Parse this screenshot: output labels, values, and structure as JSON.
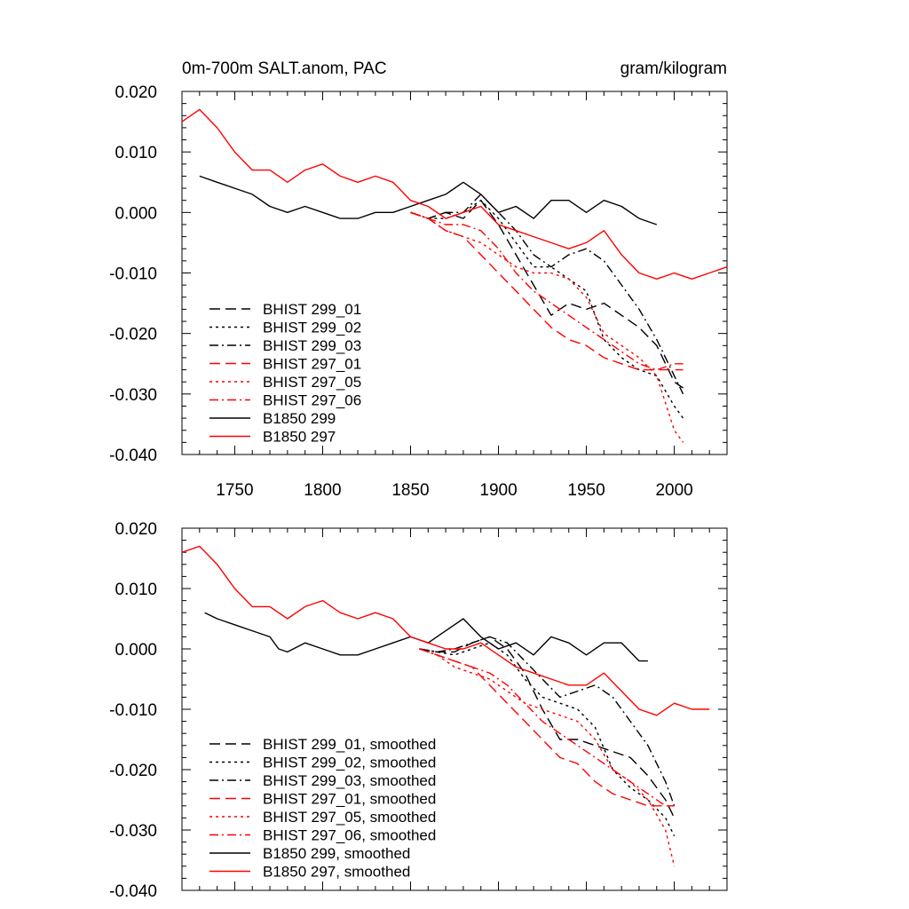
{
  "chart_data": [
    {
      "type": "line",
      "title": "0m-700m SALT.anom, PAC",
      "units": "gram/kilogram",
      "xlim": [
        1720,
        2030
      ],
      "ylim": [
        -0.04,
        0.02
      ],
      "xticks": [
        1750,
        1800,
        1850,
        1900,
        1950,
        2000
      ],
      "xtick_labels": [
        "1750",
        "1800",
        "1850",
        "1900",
        "1950",
        "2000"
      ],
      "yticks": [
        0.02,
        0.01,
        0.0,
        -0.01,
        -0.02,
        -0.03,
        -0.04
      ],
      "ytick_labels": [
        "0.020",
        "0.010",
        "0.000",
        "-0.010",
        "-0.020",
        "-0.030",
        "-0.040"
      ],
      "grid": false,
      "legend_position": "lower-left",
      "series": [
        {
          "name": "BHIST 299_01",
          "color": "#000000",
          "dash": "long-dash",
          "x": [
            1850,
            1860,
            1870,
            1880,
            1890,
            1900,
            1910,
            1920,
            1930,
            1940,
            1950,
            1960,
            1970,
            1980,
            1990,
            2000,
            2005
          ],
          "y": [
            0.0,
            -0.001,
            0.0,
            -0.001,
            0.002,
            -0.002,
            -0.007,
            -0.012,
            -0.017,
            -0.015,
            -0.016,
            -0.015,
            -0.017,
            -0.019,
            -0.022,
            -0.028,
            -0.029
          ]
        },
        {
          "name": "BHIST 299_02",
          "color": "#000000",
          "dash": "dot",
          "x": [
            1850,
            1860,
            1870,
            1880,
            1890,
            1900,
            1910,
            1920,
            1930,
            1940,
            1950,
            1960,
            1970,
            1980,
            1990,
            2000,
            2005
          ],
          "y": [
            0.0,
            -0.001,
            -0.001,
            0.0,
            0.002,
            -0.001,
            -0.005,
            -0.009,
            -0.009,
            -0.011,
            -0.013,
            -0.021,
            -0.024,
            -0.026,
            -0.027,
            -0.032,
            -0.034
          ]
        },
        {
          "name": "BHIST 299_03",
          "color": "#000000",
          "dash": "dash-dot",
          "x": [
            1850,
            1860,
            1870,
            1880,
            1890,
            1900,
            1910,
            1920,
            1930,
            1940,
            1950,
            1960,
            1970,
            1980,
            1990,
            2000,
            2005
          ],
          "y": [
            0.0,
            -0.001,
            0.0,
            0.0,
            0.003,
            0.0,
            -0.003,
            -0.007,
            -0.009,
            -0.007,
            -0.006,
            -0.008,
            -0.012,
            -0.016,
            -0.021,
            -0.027,
            -0.03
          ]
        },
        {
          "name": "BHIST 297_01",
          "color": "#ff0000",
          "dash": "long-dash",
          "x": [
            1850,
            1860,
            1870,
            1880,
            1890,
            1900,
            1910,
            1920,
            1930,
            1940,
            1950,
            1960,
            1970,
            1980,
            1990,
            2000,
            2005
          ],
          "y": [
            0.0,
            -0.001,
            -0.003,
            -0.004,
            -0.007,
            -0.01,
            -0.013,
            -0.016,
            -0.019,
            -0.021,
            -0.022,
            -0.024,
            -0.025,
            -0.026,
            -0.026,
            -0.026,
            -0.026
          ]
        },
        {
          "name": "BHIST 297_05",
          "color": "#ff0000",
          "dash": "dot",
          "x": [
            1850,
            1860,
            1870,
            1880,
            1890,
            1900,
            1910,
            1920,
            1930,
            1940,
            1950,
            1960,
            1970,
            1980,
            1990,
            2000,
            2005
          ],
          "y": [
            0.0,
            -0.001,
            -0.003,
            -0.004,
            -0.005,
            -0.007,
            -0.009,
            -0.01,
            -0.01,
            -0.011,
            -0.014,
            -0.02,
            -0.022,
            -0.024,
            -0.027,
            -0.036,
            -0.038
          ]
        },
        {
          "name": "BHIST 297_06",
          "color": "#ff0000",
          "dash": "dash-dot",
          "x": [
            1850,
            1860,
            1870,
            1880,
            1890,
            1900,
            1910,
            1920,
            1930,
            1940,
            1950,
            1960,
            1970,
            1980,
            1990,
            2000,
            2005
          ],
          "y": [
            0.0,
            -0.001,
            -0.002,
            -0.002,
            -0.003,
            -0.006,
            -0.01,
            -0.013,
            -0.015,
            -0.017,
            -0.019,
            -0.021,
            -0.023,
            -0.025,
            -0.026,
            -0.025,
            -0.025
          ]
        },
        {
          "name": "B1850 299",
          "color": "#000000",
          "dash": "solid",
          "x": [
            1730,
            1740,
            1750,
            1760,
            1770,
            1780,
            1790,
            1800,
            1810,
            1820,
            1830,
            1840,
            1850,
            1860,
            1870,
            1880,
            1890,
            1900,
            1910,
            1920,
            1930,
            1940,
            1950,
            1960,
            1970,
            1980,
            1990
          ],
          "y": [
            0.006,
            0.005,
            0.004,
            0.003,
            0.001,
            0.0,
            0.001,
            0.0,
            -0.001,
            -0.001,
            0.0,
            0.0,
            0.001,
            0.002,
            0.003,
            0.005,
            0.003,
            0.0,
            0.001,
            -0.001,
            0.002,
            0.002,
            0.0,
            0.002,
            0.001,
            -0.001,
            -0.002
          ]
        },
        {
          "name": "B1850 297",
          "color": "#ff0000",
          "dash": "solid",
          "x": [
            1720,
            1730,
            1740,
            1750,
            1760,
            1770,
            1780,
            1790,
            1800,
            1810,
            1820,
            1830,
            1840,
            1850,
            1860,
            1870,
            1880,
            1890,
            1900,
            1910,
            1920,
            1930,
            1940,
            1950,
            1960,
            1970,
            1980,
            1990,
            2000,
            2010,
            2020,
            2030
          ],
          "y": [
            0.015,
            0.017,
            0.014,
            0.01,
            0.007,
            0.007,
            0.005,
            0.007,
            0.008,
            0.006,
            0.005,
            0.006,
            0.005,
            0.002,
            0.001,
            -0.001,
            0.0,
            0.001,
            -0.002,
            -0.003,
            -0.004,
            -0.005,
            -0.006,
            -0.005,
            -0.003,
            -0.007,
            -0.01,
            -0.011,
            -0.01,
            -0.011,
            -0.01,
            -0.009
          ]
        }
      ]
    },
    {
      "type": "line",
      "title": "",
      "xlim": [
        1720,
        2030
      ],
      "ylim": [
        -0.04,
        0.02
      ],
      "xticks": [
        1750,
        1800,
        1850,
        1900,
        1950,
        2000
      ],
      "yticks": [
        0.02,
        0.01,
        0.0,
        -0.01,
        -0.02,
        -0.03,
        -0.04
      ],
      "ytick_labels": [
        "0.020",
        "0.010",
        "0.000",
        "-0.010",
        "-0.020",
        "-0.030",
        "-0.040"
      ],
      "grid": false,
      "legend_position": "lower-left",
      "series": [
        {
          "name": "BHIST 299_01, smoothed",
          "color": "#000000",
          "dash": "long-dash",
          "x": [
            1855,
            1865,
            1875,
            1885,
            1895,
            1905,
            1915,
            1925,
            1935,
            1945,
            1955,
            1965,
            1975,
            1985,
            1995,
            2000
          ],
          "y": [
            0.0,
            -0.0005,
            -0.0005,
            0.001,
            0.002,
            0.0,
            -0.004,
            -0.01,
            -0.015,
            -0.015,
            -0.016,
            -0.017,
            -0.018,
            -0.021,
            -0.025,
            -0.028
          ]
        },
        {
          "name": "BHIST 299_02, smoothed",
          "color": "#000000",
          "dash": "dot",
          "x": [
            1855,
            1865,
            1875,
            1885,
            1895,
            1905,
            1915,
            1925,
            1935,
            1945,
            1955,
            1965,
            1975,
            1985,
            1995,
            2000
          ],
          "y": [
            0.0,
            -0.0005,
            -0.001,
            0.0,
            0.001,
            -0.001,
            -0.005,
            -0.008,
            -0.009,
            -0.01,
            -0.013,
            -0.02,
            -0.023,
            -0.025,
            -0.028,
            -0.031
          ]
        },
        {
          "name": "BHIST 299_03, smoothed",
          "color": "#000000",
          "dash": "dash-dot",
          "x": [
            1855,
            1865,
            1875,
            1885,
            1895,
            1905,
            1915,
            1925,
            1935,
            1945,
            1955,
            1965,
            1975,
            1985,
            1995,
            2000
          ],
          "y": [
            0.0,
            -0.0005,
            0.0,
            0.001,
            0.002,
            0.001,
            -0.002,
            -0.005,
            -0.008,
            -0.007,
            -0.006,
            -0.008,
            -0.012,
            -0.016,
            -0.022,
            -0.026
          ]
        },
        {
          "name": "BHIST 297_01, smoothed",
          "color": "#ff0000",
          "dash": "long-dash",
          "x": [
            1855,
            1865,
            1875,
            1885,
            1895,
            1905,
            1915,
            1925,
            1935,
            1945,
            1955,
            1965,
            1975,
            1985,
            1995,
            2000
          ],
          "y": [
            0.0,
            -0.001,
            -0.002,
            -0.003,
            -0.006,
            -0.009,
            -0.012,
            -0.015,
            -0.018,
            -0.019,
            -0.022,
            -0.024,
            -0.025,
            -0.026,
            -0.026,
            -0.026
          ]
        },
        {
          "name": "BHIST 297_05, smoothed",
          "color": "#ff0000",
          "dash": "dot",
          "x": [
            1855,
            1865,
            1875,
            1885,
            1895,
            1905,
            1915,
            1925,
            1935,
            1945,
            1955,
            1965,
            1975,
            1985,
            1995,
            2000
          ],
          "y": [
            0.0,
            -0.001,
            -0.003,
            -0.004,
            -0.005,
            -0.007,
            -0.009,
            -0.01,
            -0.011,
            -0.012,
            -0.015,
            -0.02,
            -0.022,
            -0.025,
            -0.03,
            -0.036
          ]
        },
        {
          "name": "BHIST 297_06, smoothed",
          "color": "#ff0000",
          "dash": "dash-dot",
          "x": [
            1855,
            1865,
            1875,
            1885,
            1895,
            1905,
            1915,
            1925,
            1935,
            1945,
            1955,
            1965,
            1975,
            1985,
            1995,
            2000
          ],
          "y": [
            0.0,
            -0.001,
            -0.002,
            -0.003,
            -0.004,
            -0.006,
            -0.009,
            -0.012,
            -0.014,
            -0.016,
            -0.018,
            -0.02,
            -0.022,
            -0.024,
            -0.026,
            -0.026
          ]
        },
        {
          "name": "B1850 299, smoothed",
          "color": "#000000",
          "dash": "solid",
          "x": [
            1733,
            1740,
            1750,
            1760,
            1770,
            1775,
            1780,
            1790,
            1800,
            1810,
            1820,
            1830,
            1840,
            1850,
            1860,
            1870,
            1880,
            1890,
            1900,
            1910,
            1920,
            1930,
            1940,
            1950,
            1960,
            1970,
            1980,
            1985
          ],
          "y": [
            0.006,
            0.005,
            0.004,
            0.003,
            0.002,
            0.0,
            -0.0005,
            0.001,
            0.0,
            -0.001,
            -0.001,
            0.0,
            0.001,
            0.002,
            0.001,
            0.003,
            0.005,
            0.002,
            0.0,
            0.001,
            -0.001,
            0.002,
            0.001,
            -0.001,
            0.001,
            0.001,
            -0.002,
            -0.002
          ]
        },
        {
          "name": "B1850 297, smoothed",
          "color": "#ff0000",
          "dash": "solid",
          "x": [
            1720,
            1730,
            1740,
            1750,
            1760,
            1770,
            1780,
            1790,
            1800,
            1810,
            1820,
            1830,
            1840,
            1850,
            1860,
            1870,
            1880,
            1890,
            1900,
            1910,
            1920,
            1930,
            1940,
            1950,
            1960,
            1970,
            1980,
            1990,
            2000,
            2010,
            2020
          ],
          "y": [
            0.016,
            0.017,
            0.014,
            0.01,
            0.007,
            0.007,
            0.005,
            0.007,
            0.008,
            0.006,
            0.005,
            0.006,
            0.005,
            0.002,
            0.001,
            0.0,
            0.0,
            0.001,
            -0.001,
            -0.003,
            -0.004,
            -0.005,
            -0.006,
            -0.006,
            -0.004,
            -0.007,
            -0.01,
            -0.011,
            -0.009,
            -0.01,
            -0.01
          ]
        }
      ]
    }
  ]
}
